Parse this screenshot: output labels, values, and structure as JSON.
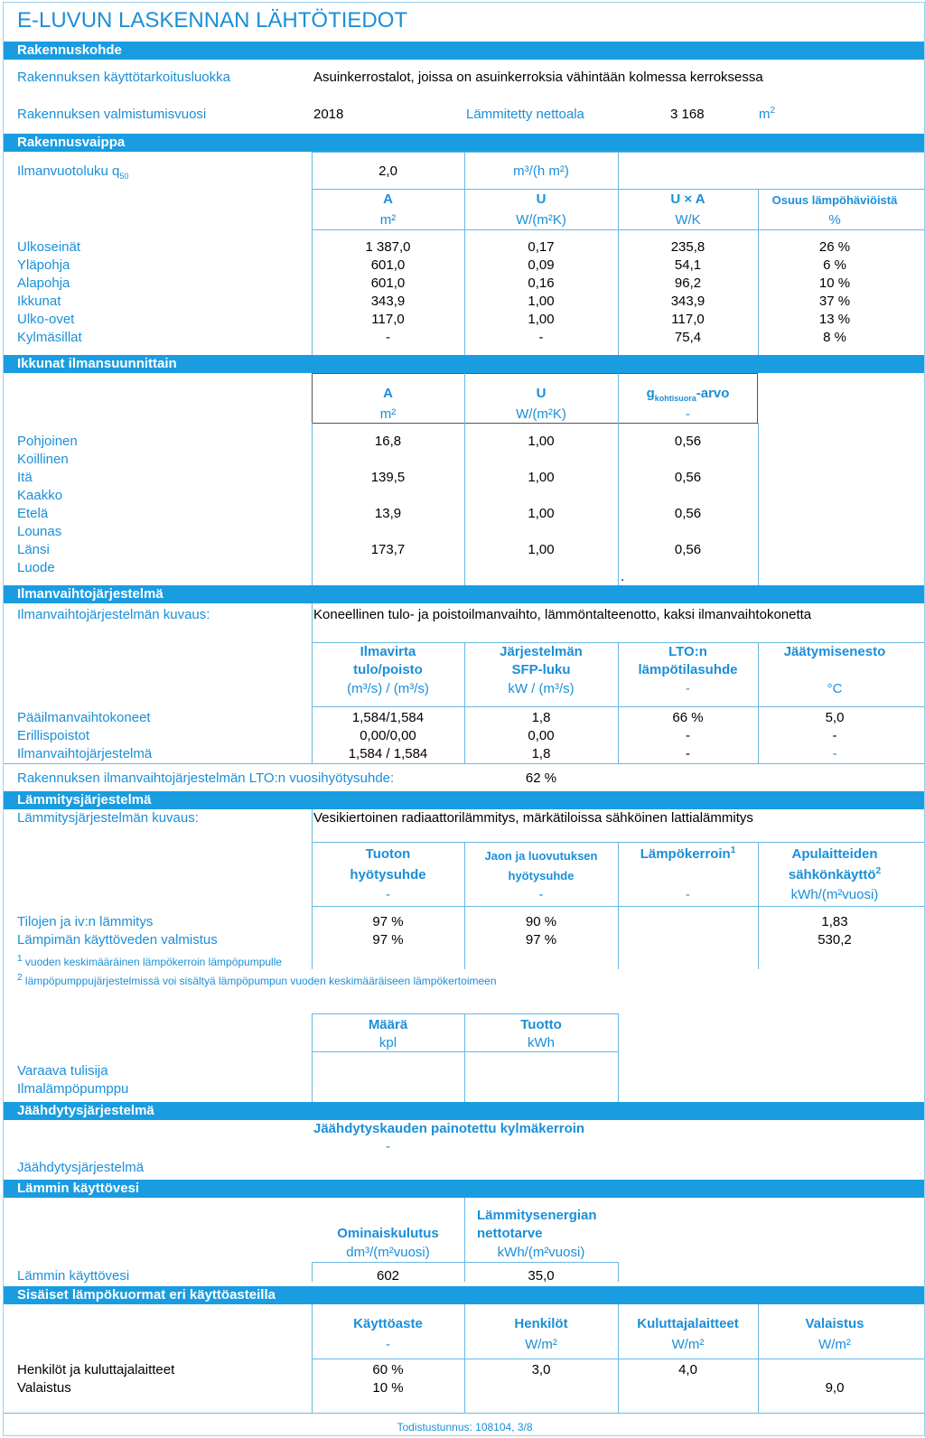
{
  "title": "E-LUVUN LASKENNAN LÄHTÖTIEDOT",
  "rakennuskohde": {
    "header": "Rakennuskohde",
    "kayttotarkoitus_label": "Rakennuksen käyttötarkoitusluokka",
    "kayttotarkoitus_value": "Asuinkerrostalot, joissa on asuinkerroksia vähintään kolmessa kerroksessa",
    "valmistumisvuosi_label": "Rakennuksen valmistumisvuosi",
    "valmistumisvuosi_value": "2018",
    "nettoala_label": "Lämmitetty nettoala",
    "nettoala_value": "3 168",
    "nettoala_unit": "m",
    "nettoala_unit_sup": "2"
  },
  "vaippa": {
    "header": "Rakennusvaippa",
    "ilmanvuotoluku_label": "Ilmanvuotoluku q",
    "ilmanvuotoluku_sub": "50",
    "ilmanvuotoluku_value": "2,0",
    "ilmanvuotoluku_unit": "m³/(h m²)",
    "col_a": "A",
    "col_u": "U",
    "col_ua": "U × A",
    "col_share": "Osuus lämpöhäviöistä",
    "unit_a": "m²",
    "unit_u": "W/(m²K)",
    "unit_ua": "W/K",
    "unit_share": "%",
    "rows": [
      {
        "label": "Ulkoseinät",
        "a": "1 387,0",
        "u": "0,17",
        "ua": "235,8",
        "share": "26 %"
      },
      {
        "label": "Yläpohja",
        "a": "601,0",
        "u": "0,09",
        "ua": "54,1",
        "share": "6 %"
      },
      {
        "label": "Alapohja",
        "a": "601,0",
        "u": "0,16",
        "ua": "96,2",
        "share": "10 %"
      },
      {
        "label": "Ikkunat",
        "a": "343,9",
        "u": "1,00",
        "ua": "343,9",
        "share": "37 %"
      },
      {
        "label": "Ulko-ovet",
        "a": "117,0",
        "u": "1,00",
        "ua": "117,0",
        "share": "13 %"
      },
      {
        "label": "Kylmäsillat",
        "a": "-",
        "u": "-",
        "ua": "75,4",
        "share": "8 %"
      }
    ]
  },
  "ikkunat": {
    "header": "Ikkunat ilmansuunnittain",
    "col_a": "A",
    "col_u": "U",
    "col_g": "g",
    "col_g_sub": "kohtisuora",
    "col_g_suffix": "-arvo",
    "unit_a": "m²",
    "unit_u": "W/(m²K)",
    "unit_g": "-",
    "rows": [
      {
        "label": "Pohjoinen",
        "a": "16,8",
        "u": "1,00",
        "g": "0,56"
      },
      {
        "label": "Koillinen",
        "a": "",
        "u": "",
        "g": ""
      },
      {
        "label": "Itä",
        "a": "139,5",
        "u": "1,00",
        "g": "0,56"
      },
      {
        "label": "Kaakko",
        "a": "",
        "u": "",
        "g": ""
      },
      {
        "label": "Etelä",
        "a": "13,9",
        "u": "1,00",
        "g": "0,56"
      },
      {
        "label": "Lounas",
        "a": "",
        "u": "",
        "g": ""
      },
      {
        "label": "Länsi",
        "a": "173,7",
        "u": "1,00",
        "g": "0,56"
      },
      {
        "label": "Luode",
        "a": "",
        "u": "",
        "g": ""
      }
    ],
    "dot": "."
  },
  "ilmanvaihto": {
    "header": "Ilmanvaihtojärjestelmä",
    "kuvaus_label": "Ilmanvaihtojärjestelmän kuvaus:",
    "kuvaus_value": "Koneellinen tulo- ja poistoilmanvaihto, lämmöntalteenotto, kaksi ilmanvaihtokonetta",
    "col1_l1": "Ilmavirta",
    "col1_l2": "tulo/poisto",
    "col1_unit": "(m³/s) / (m³/s)",
    "col2_l1": "Järjestelmän",
    "col2_l2": "SFP-luku",
    "col2_unit": "kW / (m³/s)",
    "col3_l1": "LTO:n",
    "col3_l2": "lämpötilasuhde",
    "col3_unit": "-",
    "col4_l1": "Jäätymisenesto",
    "col4_unit": "°C",
    "rows": [
      {
        "label": "Pääilmanvaihtokoneet",
        "v1": "1,584/1,584",
        "v2": "1,8",
        "v3": "66 %",
        "v4": "5,0"
      },
      {
        "label": "Erillispoistot",
        "v1": "0,00/0,00",
        "v2": "0,00",
        "v3": "-",
        "v4": "-"
      },
      {
        "label": "Ilmanvaihtojärjestelmä",
        "v1": "1,584 / 1,584",
        "v2": "1,8",
        "v3": "-",
        "v4": "-"
      }
    ],
    "lto_label": "Rakennuksen ilmanvaihtojärjestelmän LTO:n vuosihyötysuhde:",
    "lto_value": "62 %"
  },
  "lammitys": {
    "header": "Lämmitysjärjestelmä",
    "kuvaus_label": "Lämmitysjärjestelmän kuvaus:",
    "kuvaus_value": "Vesikiertoinen radiaattorilämmitys, märkätiloissa sähköinen lattialämmitys",
    "col1_l1": "Tuoton",
    "col1_l2": "hyötysuhde",
    "col1_unit": "-",
    "col2_l1": "Jaon ja luovutuksen",
    "col2_l2": "hyötysuhde",
    "col2_unit": "-",
    "col3_l1": "Lämpökerroin",
    "col3_sup": "1",
    "col3_unit": "-",
    "col4_l1": "Apulaitteiden",
    "col4_l2": "sähkönkäyttö",
    "col4_sup": "2",
    "col4_unit": "kWh/(m²vuosi)",
    "rows": [
      {
        "label": "Tilojen ja iv:n lämmitys",
        "v1": "97 %",
        "v2": "90 %",
        "v3": "",
        "v4": "1,83"
      },
      {
        "label": "Lämpimän käyttöveden valmistus",
        "v1": "97 %",
        "v2": "97 %",
        "v3": "",
        "v4": "530,2"
      }
    ],
    "note1_sup": "1",
    "note1": "vuoden keskimääräinen lämpökerroin lämpöpumpulle",
    "note2_sup": "2",
    "note2": "lämpöpumppujärjestelmissä voi sisältyä lämpöpumpun vuoden keskimääräiseen lämpökertoimeen",
    "lisa_col1": "Määrä",
    "lisa_col1_unit": "kpl",
    "lisa_col2": "Tuotto",
    "lisa_col2_unit": "kWh",
    "lisa_rows": [
      "Varaava tulisija",
      "Ilmalämpöpumppu"
    ]
  },
  "jaahdytys": {
    "header": "Jäähdytysjärjestelmä",
    "col": "Jäähdytyskauden painotettu kylmäkerroin",
    "col_unit": "-",
    "row_label": "Jäähdytysjärjestelmä"
  },
  "kayttovesi": {
    "header": "Lämmin käyttövesi",
    "col1": "Ominaiskulutus",
    "col1_unit": "dm³/(m²vuosi)",
    "col2_l1": "Lämmitysenergian",
    "col2_l2": "nettotarve",
    "col2_unit": "kWh/(m²vuosi)",
    "row_label": "Lämmin käyttövesi",
    "v1": "602",
    "v2": "35,0"
  },
  "kuormat": {
    "header": "Sisäiset lämpökuormat eri käyttöasteilla",
    "col1": "Käyttöaste",
    "col1_unit": "-",
    "col2": "Henkilöt",
    "col2_unit": "W/m²",
    "col3": "Kuluttajalaitteet",
    "col3_unit": "W/m²",
    "col4": "Valaistus",
    "col4_unit": "W/m²",
    "rows": [
      {
        "label": "Henkilöt ja kuluttajalaitteet",
        "v1": "60 %",
        "v2": "3,0",
        "v3": "4,0",
        "v4": ""
      },
      {
        "label": "Valaistus",
        "v1": "10 %",
        "v2": "",
        "v3": "",
        "v4": "9,0"
      }
    ]
  },
  "footer": "Todistustunnus: 108104, 3/8",
  "colors": {
    "accent": "#1a9ce0",
    "text_blue": "#1a8fd8",
    "line": "#6bb8e6"
  }
}
